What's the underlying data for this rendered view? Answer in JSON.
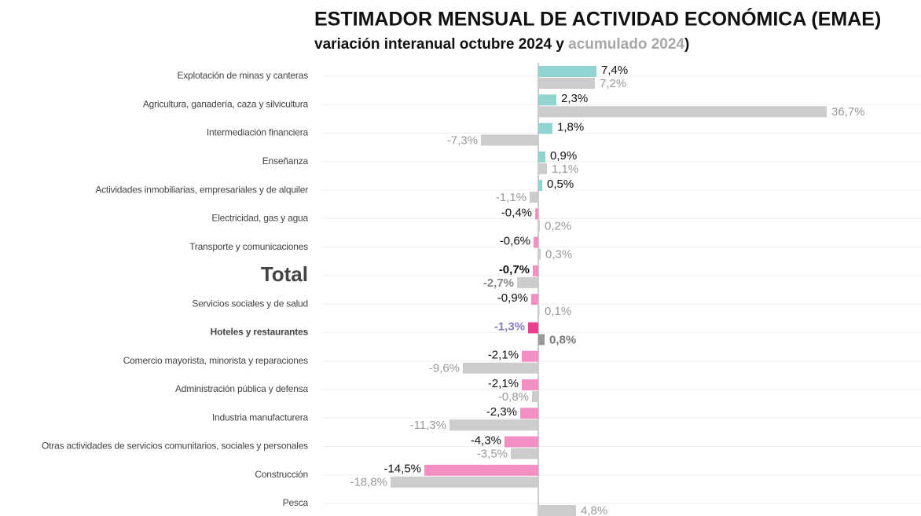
{
  "chart_data": {
    "type": "bar",
    "orientation": "horizontal",
    "title": "ESTIMADOR MENSUAL DE ACTIVIDAD ECONÓMICA (EMAE)",
    "subtitle": [
      "variación interanual octubre 2024 y ",
      "acumulado 2024",
      ")"
    ],
    "categories": [
      "Explotación de minas y canteras",
      "Agricultura, ganadería, caza y silvicultura",
      "Intermediación financiera",
      "Enseñanza",
      "Actividades inmobiliarias, empresariales y de alquiler",
      "Electricidad, gas y agua",
      "Transporte y comunicaciones",
      "Total",
      "Servicios sociales y de salud",
      "Hoteles y restaurantes",
      "Comercio mayorista, minorista y reparaciones",
      "Administración pública y defensa",
      "Industria manufacturera",
      "Otras actividades de servicios comunitarios, sociales y personales",
      "Construcción",
      "Pesca"
    ],
    "series": [
      {
        "name": "variación interanual octubre 2024",
        "color": "#8fd4cf",
        "negative_color": "#f48fc3",
        "values": [
          7.4,
          2.3,
          1.8,
          0.9,
          0.5,
          -0.4,
          -0.6,
          -0.7,
          -0.9,
          -1.3,
          -2.1,
          -2.1,
          -2.3,
          -4.3,
          -14.5,
          null
        ],
        "value_labels": [
          "7,4%",
          "2,3%",
          "1,8%",
          "0,9%",
          "0,5%",
          "-0,4%",
          "-0,6%",
          "-0,7%",
          "-0,9%",
          "-1,3%",
          "-2,1%",
          "-2,1%",
          "-2,3%",
          "-4,3%",
          "-14,5%",
          null
        ]
      },
      {
        "name": "acumulado 2024",
        "color": "#cccccc",
        "negative_color": "#cccccc",
        "values": [
          7.2,
          36.7,
          -7.3,
          1.1,
          -1.1,
          0.2,
          0.3,
          -2.7,
          0.1,
          0.8,
          -9.6,
          -0.8,
          -11.3,
          -3.5,
          -18.8,
          4.8
        ],
        "value_labels": [
          "7,2%",
          "36,7%",
          "-7,3%",
          "1,1%",
          "-1,1%",
          "0,2%",
          "0,3%",
          "-2,7%",
          "0,1%",
          "0,8%",
          "-9,6%",
          "-0,8%",
          "-11,3%",
          "-3,5%",
          "-18,8%",
          "4,8%"
        ]
      }
    ],
    "xlim": [
      -27.5,
      48.7
    ],
    "grid": true
  }
}
